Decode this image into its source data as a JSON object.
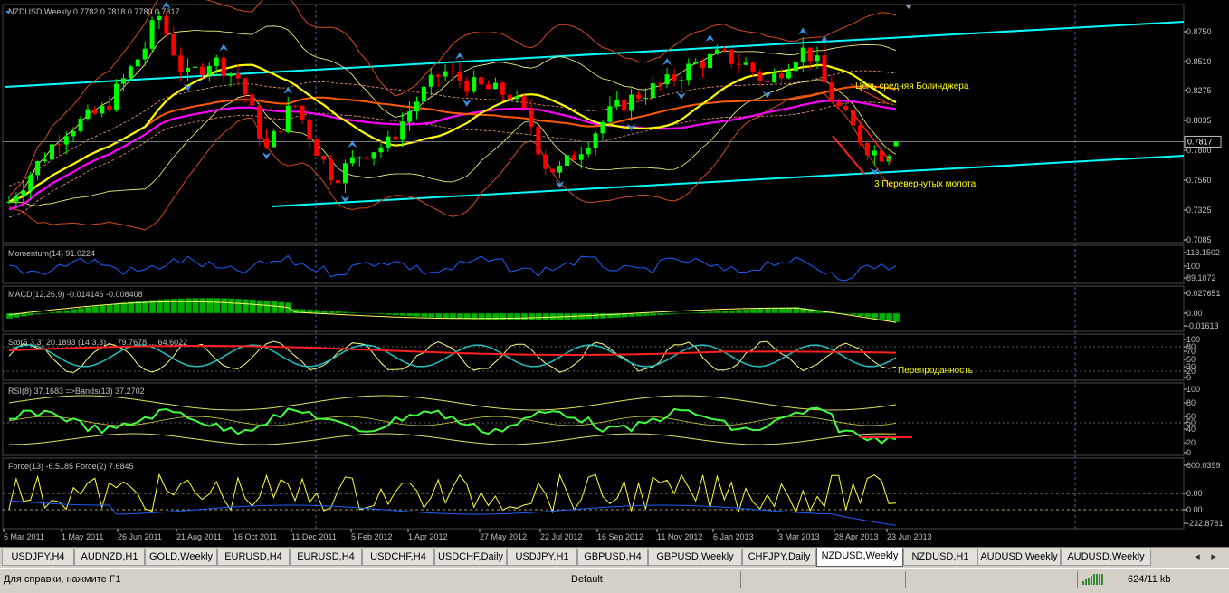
{
  "panes": {
    "main": {
      "header": "NZDUSD,Weekly  0.7782 0.7818 0.7780 0.7817",
      "price_labels": [
        "0.8750",
        "0.8510",
        "0.8275",
        "0.8035",
        "0.7800",
        "0.7560",
        "0.7325",
        "0.7085"
      ],
      "current_price": "0.7817"
    },
    "momentum": {
      "header": "Momentum(14) 91.0224",
      "labels": [
        "113.1502",
        "100",
        "89.1072"
      ]
    },
    "macd": {
      "header": "MACD(12,26,9) -0.014146 -0.008408",
      "labels": [
        "0.027651",
        "0.00",
        "-0.01613"
      ]
    },
    "stoch": {
      "header": "Sto(5,3,3) 20.1893 (14,3,3) ... 79.7678 ... 64.6022",
      "labels": [
        "100",
        "80",
        "70",
        "50",
        "30",
        "20",
        "0"
      ]
    },
    "rsi": {
      "header": "RSI(8) 37.1683  =>Bands(13) 37.2702",
      "labels": [
        "100",
        "80",
        "60",
        "50",
        "40",
        "20",
        "0"
      ]
    },
    "force": {
      "header": "Force(13) -6.5185  Force(2) 7.6845",
      "labels": [
        "600.0399",
        "0.00",
        "0.00",
        "-232.8781"
      ]
    }
  },
  "annotations": {
    "bollinger_target": "Цель средняя Болинджера",
    "hammers": "3 Перевернутых молота",
    "oversold": "Перепроданность"
  },
  "date_axis": [
    "6 Mar 2011",
    "1 May 2011",
    "26 Jun 2011",
    "21 Aug 2011",
    "16 Oct 2011",
    "11 Dec 2011",
    "5 Feb 2012",
    "1 Apr 2012",
    "27 May 2012",
    "22 Jul 2012",
    "16 Sep 2012",
    "11 Nov 2012",
    "6 Jan 2013",
    "3 Mar 2013",
    "28 Apr 2013",
    "23 Jun 2013"
  ],
  "tabs": [
    {
      "label": "USDJPY,H4"
    },
    {
      "label": "AUDNZD,H1"
    },
    {
      "label": "GOLD,Weekly"
    },
    {
      "label": "EURUSD,H4"
    },
    {
      "label": "EURUSD,H4"
    },
    {
      "label": "USDCHF,H4"
    },
    {
      "label": "USDCHF,Daily"
    },
    {
      "label": "USDJPY,H1"
    },
    {
      "label": "GBPUSD,H4"
    },
    {
      "label": "GBPUSD,Weekly"
    },
    {
      "label": "CHFJPY,Daily"
    },
    {
      "label": "NZDUSD,Weekly",
      "active": true
    },
    {
      "label": "NZDUSD,H1"
    },
    {
      "label": "AUDUSD,Weekly"
    },
    {
      "label": "AUDUSD,Weekly"
    }
  ],
  "status": {
    "help": "Для справки, нажмите F1",
    "profile": "Default",
    "traffic": "624/11 kb"
  },
  "colors": {
    "bg": "#000000",
    "bull": "#00ff00",
    "bear": "#ff0000",
    "channel": "#00ffff",
    "ma_yellow": "#ffff00",
    "ma_orange": "#ff5a00",
    "ma_magenta": "#ff00ff",
    "momentum": "#1e5eff",
    "text": "#c0c0c0",
    "annotation": "#ffff00"
  }
}
